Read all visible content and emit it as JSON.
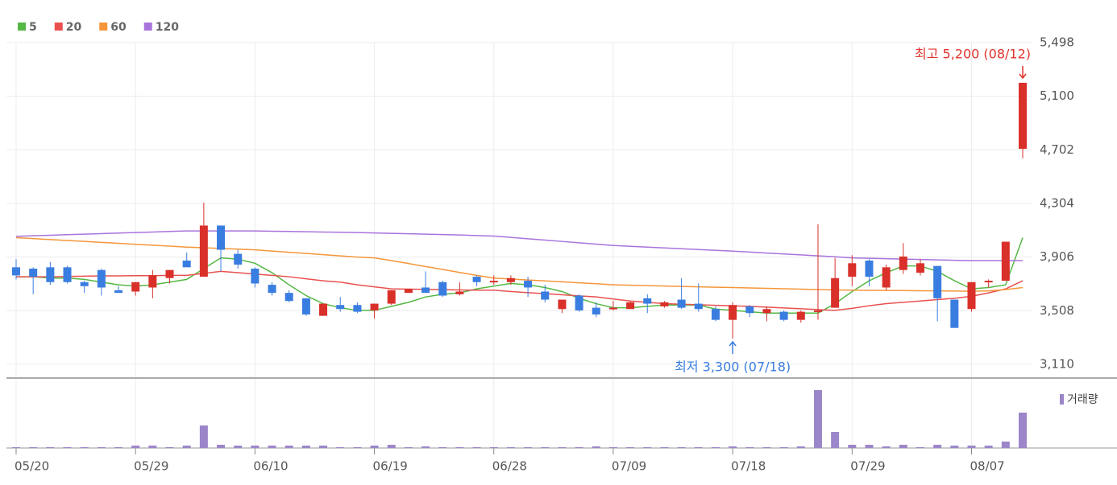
{
  "chart_data": {
    "type": "candlestick",
    "categories": [
      "05/20",
      null,
      null,
      null,
      null,
      null,
      null,
      "05/29",
      null,
      null,
      null,
      null,
      null,
      null,
      "06/10",
      null,
      null,
      null,
      null,
      null,
      null,
      "06/19",
      null,
      null,
      null,
      null,
      null,
      null,
      "06/28",
      null,
      null,
      null,
      null,
      null,
      null,
      "07/09",
      null,
      null,
      null,
      null,
      null,
      null,
      "07/18",
      null,
      null,
      null,
      null,
      null,
      null,
      "07/29",
      null,
      null,
      null,
      null,
      null,
      null,
      "08/07",
      null,
      null,
      null
    ],
    "open": [
      3830,
      3820,
      3830,
      3830,
      3720,
      3810,
      3660,
      3650,
      3680,
      3750,
      3880,
      3760,
      4140,
      3930,
      3820,
      3700,
      3640,
      3600,
      3470,
      3550,
      3550,
      3510,
      3560,
      3640,
      3680,
      3720,
      3630,
      3760,
      3720,
      3720,
      3730,
      3650,
      3520,
      3620,
      3530,
      3520,
      3520,
      3600,
      3540,
      3590,
      3560,
      3520,
      3440,
      3540,
      3490,
      3500,
      3440,
      3500,
      3530,
      3760,
      3880,
      3680,
      3810,
      3790,
      3840,
      3590,
      3520,
      3720,
      3730,
      4710
    ],
    "high": [
      3890,
      3830,
      3870,
      3840,
      3730,
      3820,
      3690,
      3720,
      3810,
      3810,
      3940,
      4310,
      4140,
      3960,
      3830,
      3720,
      3660,
      3600,
      3560,
      3610,
      3570,
      3560,
      3660,
      3670,
      3800,
      3730,
      3720,
      3770,
      3770,
      3770,
      3760,
      3700,
      3590,
      3630,
      3570,
      3580,
      3580,
      3630,
      3580,
      3750,
      3710,
      3540,
      3570,
      3550,
      3540,
      3510,
      3510,
      4150,
      3900,
      3920,
      3890,
      3850,
      4010,
      3890,
      3840,
      3590,
      3720,
      3740,
      4020,
      5200
    ],
    "low": [
      3740,
      3630,
      3700,
      3710,
      3640,
      3620,
      3640,
      3620,
      3600,
      3710,
      3840,
      3760,
      3800,
      3820,
      3680,
      3620,
      3570,
      3470,
      3470,
      3500,
      3490,
      3450,
      3550,
      3640,
      3640,
      3610,
      3620,
      3690,
      3700,
      3700,
      3610,
      3570,
      3490,
      3500,
      3460,
      3510,
      3520,
      3490,
      3530,
      3520,
      3500,
      3430,
      3300,
      3460,
      3430,
      3430,
      3420,
      3440,
      3530,
      3690,
      3690,
      3660,
      3780,
      3770,
      3430,
      3380,
      3500,
      3680,
      3730,
      4640
    ],
    "close": [
      3770,
      3760,
      3720,
      3720,
      3690,
      3680,
      3640,
      3720,
      3770,
      3810,
      3830,
      4140,
      3960,
      3850,
      3710,
      3640,
      3580,
      3480,
      3560,
      3520,
      3500,
      3560,
      3660,
      3670,
      3640,
      3620,
      3650,
      3720,
      3730,
      3750,
      3680,
      3590,
      3590,
      3510,
      3480,
      3530,
      3570,
      3560,
      3570,
      3530,
      3520,
      3440,
      3550,
      3490,
      3520,
      3440,
      3500,
      3510,
      3750,
      3860,
      3760,
      3830,
      3910,
      3860,
      3600,
      3380,
      3720,
      3730,
      4020,
      5200
    ],
    "up_color": "#d9302a",
    "down_color": "#3a7de0",
    "ylim": [
      3008,
      5498
    ],
    "yticks": [
      {
        "value": 5498,
        "label": "5,498"
      },
      {
        "value": 5100,
        "label": "5,100"
      },
      {
        "value": 4702,
        "label": "4,702"
      },
      {
        "value": 4304,
        "label": "4,304"
      },
      {
        "value": 3906,
        "label": "3,906"
      },
      {
        "value": 3508,
        "label": "3,508"
      },
      {
        "value": 3110,
        "label": "3,110"
      }
    ],
    "grid": true,
    "ma": [
      {
        "name": "5",
        "color": "#55b844",
        "values": [
          3760,
          3760,
          3750,
          3750,
          3740,
          3720,
          3700,
          3690,
          3700,
          3720,
          3740,
          3820,
          3900,
          3890,
          3860,
          3790,
          3700,
          3620,
          3560,
          3530,
          3510,
          3510,
          3540,
          3570,
          3610,
          3630,
          3640,
          3670,
          3690,
          3710,
          3700,
          3680,
          3650,
          3600,
          3560,
          3530,
          3530,
          3540,
          3550,
          3550,
          3550,
          3520,
          3510,
          3500,
          3490,
          3490,
          3490,
          3490,
          3560,
          3650,
          3730,
          3790,
          3840,
          3840,
          3800,
          3730,
          3670,
          3680,
          3700,
          4050
        ]
      },
      {
        "name": "20",
        "color": "#e8514f",
        "values": [
          3760,
          3760,
          3760,
          3762,
          3764,
          3766,
          3766,
          3768,
          3768,
          3770,
          3770,
          3785,
          3800,
          3790,
          3780,
          3770,
          3760,
          3745,
          3730,
          3720,
          3700,
          3685,
          3670,
          3668,
          3666,
          3664,
          3662,
          3660,
          3660,
          3650,
          3642,
          3634,
          3626,
          3618,
          3610,
          3595,
          3580,
          3570,
          3560,
          3556,
          3552,
          3548,
          3544,
          3540,
          3534,
          3528,
          3522,
          3516,
          3510,
          3525,
          3545,
          3560,
          3570,
          3580,
          3590,
          3600,
          3615,
          3640,
          3670,
          3730
        ]
      },
      {
        "name": "60",
        "color": "#f5963a",
        "values": [
          4050,
          4043,
          4036,
          4029,
          4022,
          4015,
          4008,
          4001,
          3994,
          3987,
          3980,
          3975,
          3970,
          3965,
          3960,
          3951,
          3942,
          3933,
          3924,
          3915,
          3906,
          3900,
          3880,
          3858,
          3836,
          3814,
          3792,
          3770,
          3750,
          3743,
          3736,
          3729,
          3722,
          3715,
          3708,
          3700,
          3697,
          3694,
          3691,
          3688,
          3685,
          3682,
          3680,
          3677,
          3674,
          3671,
          3668,
          3665,
          3662,
          3660,
          3659,
          3658,
          3657,
          3656,
          3655,
          3654,
          3652,
          3655,
          3665,
          3680
        ]
      },
      {
        "name": "120",
        "color": "#a874dc",
        "values": [
          4060,
          4064,
          4068,
          4072,
          4076,
          4080,
          4084,
          4088,
          4092,
          4096,
          4100,
          4100,
          4100,
          4100,
          4100,
          4098,
          4096,
          4094,
          4092,
          4090,
          4088,
          4085,
          4082,
          4079,
          4076,
          4073,
          4070,
          4066,
          4062,
          4052,
          4042,
          4032,
          4022,
          4012,
          4002,
          3992,
          3986,
          3980,
          3974,
          3968,
          3962,
          3956,
          3950,
          3943,
          3936,
          3929,
          3922,
          3915,
          3908,
          3900,
          3897,
          3894,
          3891,
          3888,
          3885,
          3882,
          3880,
          3880,
          3880,
          3880
        ]
      }
    ],
    "volume": {
      "name": "거래량",
      "color": "#9b86c9",
      "ylim": [
        0,
        75
      ],
      "values": [
        1,
        1,
        1,
        1,
        1,
        1,
        1,
        3,
        3,
        1,
        3,
        28,
        4,
        3,
        3,
        3,
        3,
        3,
        3,
        1,
        1,
        3,
        4,
        1,
        2,
        1,
        1,
        1,
        1,
        1,
        1,
        1,
        1,
        1,
        2,
        1,
        1,
        1,
        1,
        1,
        1,
        1,
        2,
        1,
        1,
        1,
        2,
        72,
        20,
        4,
        4,
        2,
        4,
        1,
        4,
        3,
        3,
        3,
        8,
        44
      ]
    },
    "annotations": [
      {
        "text": "최고 5,200 (08/12)",
        "color": "#e0332d"
      },
      {
        "text": "최저 3,300 (07/18)",
        "color": "#3a7de0"
      }
    ]
  }
}
